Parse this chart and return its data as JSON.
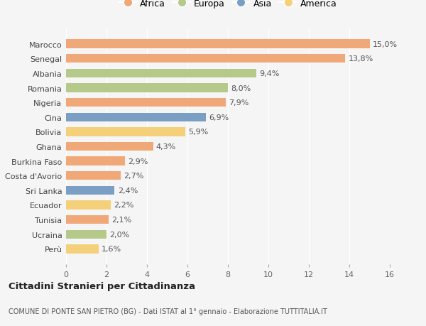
{
  "categories": [
    "Marocco",
    "Senegal",
    "Albania",
    "Romania",
    "Nigeria",
    "Cina",
    "Bolivia",
    "Ghana",
    "Burkina Faso",
    "Costa d'Avorio",
    "Sri Lanka",
    "Ecuador",
    "Tunisia",
    "Ucraina",
    "Perù"
  ],
  "values": [
    15.0,
    13.8,
    9.4,
    8.0,
    7.9,
    6.9,
    5.9,
    4.3,
    2.9,
    2.7,
    2.4,
    2.2,
    2.1,
    2.0,
    1.6
  ],
  "labels": [
    "15,0%",
    "13,8%",
    "9,4%",
    "8,0%",
    "7,9%",
    "6,9%",
    "5,9%",
    "4,3%",
    "2,9%",
    "2,7%",
    "2,4%",
    "2,2%",
    "2,1%",
    "2,0%",
    "1,6%"
  ],
  "continents": [
    "Africa",
    "Africa",
    "Europa",
    "Europa",
    "Africa",
    "Asia",
    "America",
    "Africa",
    "Africa",
    "Africa",
    "Asia",
    "America",
    "Africa",
    "Europa",
    "America"
  ],
  "colors": {
    "Africa": "#F0A878",
    "Europa": "#B5C98A",
    "Asia": "#7B9FC4",
    "America": "#F5D07A"
  },
  "legend_order": [
    "Africa",
    "Europa",
    "Asia",
    "America"
  ],
  "xlim": [
    0,
    16
  ],
  "xticks": [
    0,
    2,
    4,
    6,
    8,
    10,
    12,
    14,
    16
  ],
  "title": "Cittadini Stranieri per Cittadinanza",
  "subtitle": "COMUNE DI PONTE SAN PIETRO (BG) - Dati ISTAT al 1° gennaio - Elaborazione TUTTITALIA.IT",
  "bg_color": "#f5f5f5",
  "grid_color": "#ffffff",
  "bar_height": 0.6,
  "label_fontsize": 8,
  "ytick_fontsize": 8,
  "xtick_fontsize": 8
}
